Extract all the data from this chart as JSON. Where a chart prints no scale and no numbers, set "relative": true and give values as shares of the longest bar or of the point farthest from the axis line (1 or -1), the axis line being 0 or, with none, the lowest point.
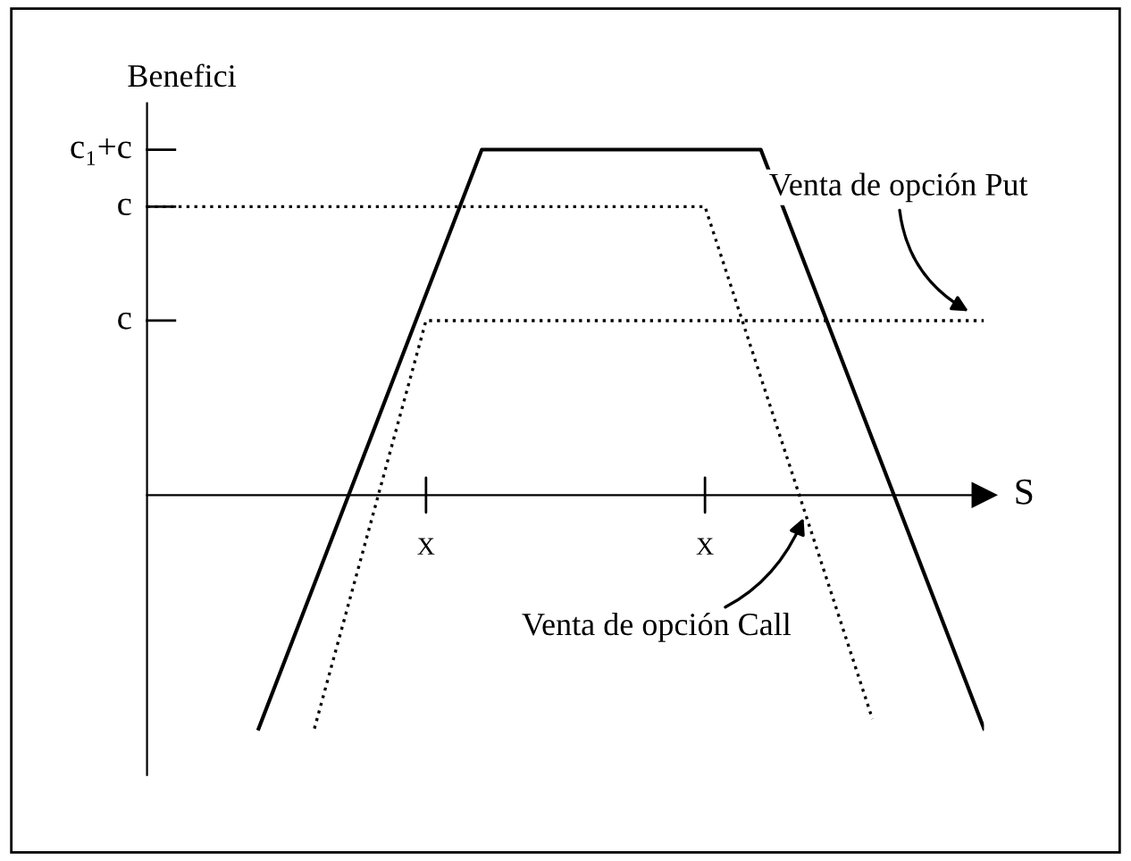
{
  "chart_data": {
    "type": "line",
    "relative": true,
    "xlabel": "S",
    "ylabel": "Benefici",
    "categories": [
      null,
      null,
      null,
      null,
      null,
      "X",
      null,
      null,
      null,
      null,
      "X",
      null,
      null,
      null,
      null,
      null
    ],
    "annotations": [
      "c₁+c",
      "c",
      "c"
    ],
    "series": [
      {
        "color": "#000000",
        "line_style": "solid",
        "values": [
          null,
          null,
          -0.676,
          -0.257,
          0.162,
          0.581,
          1,
          1,
          1,
          1,
          1,
          1,
          0.581,
          0.162,
          -0.257,
          -0.676
        ]
      },
      {
        "name": "Venta de opción Put",
        "color": "#000000",
        "line_style": "dotted",
        "values": [
          null,
          null,
          null,
          -0.676,
          -0.086,
          0.505,
          0.505,
          0.505,
          0.505,
          0.505,
          0.505,
          0.505,
          0.505,
          0.505,
          0.505,
          0.505
        ]
      },
      {
        "name": "Venta de opción Call",
        "color": "#000000",
        "line_style": "dotted",
        "values": [
          0.835,
          0.835,
          0.835,
          0.835,
          0.835,
          0.835,
          0.835,
          0.835,
          0.835,
          0.835,
          0.835,
          0.341,
          -0.153,
          -0.648,
          null,
          null
        ]
      }
    ],
    "legend": false,
    "marker": "none"
  }
}
